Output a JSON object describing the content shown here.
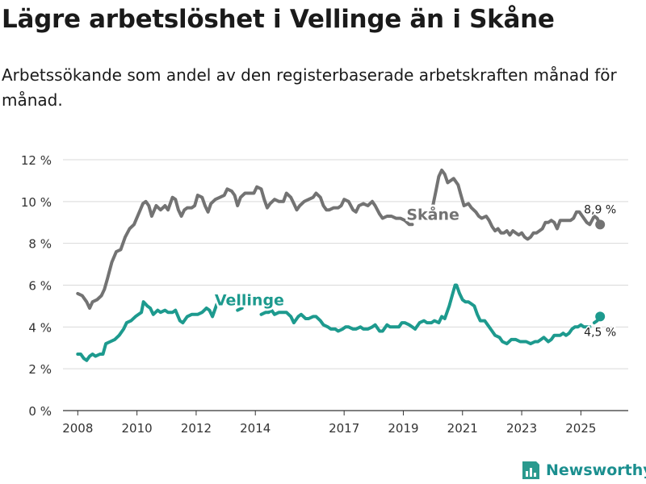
{
  "title": "Lägre arbetslöshet i Vellinge än i Skåne",
  "subtitle": "Arbetssökande som andel av den registerbaserade arbetskraften månad för månad.",
  "brand": "Newsworthy",
  "chart_data": {
    "type": "line",
    "ylim": [
      0,
      12
    ],
    "xlim": [
      2007.5,
      2026.6
    ],
    "yticks": [
      {
        "value": 0,
        "label": "0 %"
      },
      {
        "value": 2,
        "label": "2 %"
      },
      {
        "value": 4,
        "label": "4 %"
      },
      {
        "value": 6,
        "label": "6 %"
      },
      {
        "value": 8,
        "label": "8 %"
      },
      {
        "value": 10,
        "label": "10 %"
      },
      {
        "value": 12,
        "label": "12 %"
      }
    ],
    "xticks": [
      {
        "value": 2008,
        "label": "2008"
      },
      {
        "value": 2010,
        "label": "2010"
      },
      {
        "value": 2012,
        "label": "2012"
      },
      {
        "value": 2014,
        "label": "2014"
      },
      {
        "value": 2017,
        "label": "2017"
      },
      {
        "value": 2019,
        "label": "2019"
      },
      {
        "value": 2021,
        "label": "2021"
      },
      {
        "value": 2023,
        "label": "2023"
      },
      {
        "value": 2025,
        "label": "2025"
      }
    ],
    "grid": true,
    "series": [
      {
        "name": "Skåne",
        "color": "#737373",
        "last_label": "8,9 %",
        "points": [
          [
            2008.0,
            5.6
          ],
          [
            2008.15,
            5.5
          ],
          [
            2008.3,
            5.2
          ],
          [
            2008.4,
            4.9
          ],
          [
            2008.5,
            5.2
          ],
          [
            2008.65,
            5.3
          ],
          [
            2008.8,
            5.5
          ],
          [
            2008.9,
            5.8
          ],
          [
            2009.0,
            6.3
          ],
          [
            2009.15,
            7.1
          ],
          [
            2009.3,
            7.6
          ],
          [
            2009.45,
            7.7
          ],
          [
            2009.6,
            8.3
          ],
          [
            2009.75,
            8.7
          ],
          [
            2009.9,
            8.9
          ],
          [
            2010.05,
            9.4
          ],
          [
            2010.2,
            9.9
          ],
          [
            2010.3,
            10.0
          ],
          [
            2010.4,
            9.8
          ],
          [
            2010.5,
            9.3
          ],
          [
            2010.65,
            9.8
          ],
          [
            2010.8,
            9.6
          ],
          [
            2010.95,
            9.8
          ],
          [
            2011.05,
            9.6
          ],
          [
            2011.2,
            10.2
          ],
          [
            2011.3,
            10.1
          ],
          [
            2011.4,
            9.6
          ],
          [
            2011.5,
            9.3
          ],
          [
            2011.6,
            9.6
          ],
          [
            2011.7,
            9.7
          ],
          [
            2011.85,
            9.7
          ],
          [
            2011.95,
            9.8
          ],
          [
            2012.05,
            10.3
          ],
          [
            2012.2,
            10.2
          ],
          [
            2012.3,
            9.8
          ],
          [
            2012.4,
            9.5
          ],
          [
            2012.5,
            9.9
          ],
          [
            2012.65,
            10.1
          ],
          [
            2012.8,
            10.2
          ],
          [
            2012.95,
            10.3
          ],
          [
            2013.05,
            10.6
          ],
          [
            2013.2,
            10.5
          ],
          [
            2013.3,
            10.3
          ],
          [
            2013.4,
            9.8
          ],
          [
            2013.5,
            10.2
          ],
          [
            2013.65,
            10.4
          ],
          [
            2013.8,
            10.4
          ],
          [
            2013.95,
            10.4
          ],
          [
            2014.05,
            10.7
          ],
          [
            2014.2,
            10.6
          ],
          [
            2014.3,
            10.1
          ],
          [
            2014.4,
            9.7
          ],
          [
            2014.5,
            9.9
          ],
          [
            2014.65,
            10.1
          ],
          [
            2014.8,
            10.0
          ],
          [
            2014.95,
            10.0
          ],
          [
            2015.05,
            10.4
          ],
          [
            2015.2,
            10.2
          ],
          [
            2015.3,
            9.9
          ],
          [
            2015.4,
            9.6
          ],
          [
            2015.5,
            9.8
          ],
          [
            2015.65,
            10.0
          ],
          [
            2015.8,
            10.1
          ],
          [
            2015.95,
            10.2
          ],
          [
            2016.05,
            10.4
          ],
          [
            2016.2,
            10.2
          ],
          [
            2016.3,
            9.8
          ],
          [
            2016.4,
            9.6
          ],
          [
            2016.5,
            9.6
          ],
          [
            2016.65,
            9.7
          ],
          [
            2016.8,
            9.7
          ],
          [
            2016.9,
            9.8
          ],
          [
            2017.0,
            10.1
          ],
          [
            2017.15,
            10.0
          ],
          [
            2017.3,
            9.6
          ],
          [
            2017.4,
            9.5
          ],
          [
            2017.5,
            9.8
          ],
          [
            2017.65,
            9.9
          ],
          [
            2017.8,
            9.8
          ],
          [
            2017.95,
            10.0
          ],
          [
            2018.05,
            9.8
          ],
          [
            2018.2,
            9.4
          ],
          [
            2018.3,
            9.2
          ],
          [
            2018.45,
            9.3
          ],
          [
            2018.6,
            9.3
          ],
          [
            2018.75,
            9.2
          ],
          [
            2018.9,
            9.2
          ],
          [
            2019.05,
            9.1
          ],
          [
            2019.2,
            8.9
          ],
          [
            2019.3,
            8.9
          ]
        ],
        "points_b": [
          [
            2020.0,
            9.8
          ],
          [
            2020.1,
            10.5
          ],
          [
            2020.2,
            11.2
          ],
          [
            2020.3,
            11.5
          ],
          [
            2020.4,
            11.3
          ],
          [
            2020.5,
            10.9
          ],
          [
            2020.6,
            11.0
          ],
          [
            2020.7,
            11.1
          ],
          [
            2020.85,
            10.8
          ],
          [
            2020.95,
            10.3
          ],
          [
            2021.05,
            9.8
          ],
          [
            2021.2,
            9.9
          ],
          [
            2021.3,
            9.7
          ],
          [
            2021.45,
            9.5
          ],
          [
            2021.55,
            9.3
          ],
          [
            2021.65,
            9.2
          ],
          [
            2021.8,
            9.3
          ],
          [
            2021.9,
            9.1
          ],
          [
            2022.0,
            8.8
          ],
          [
            2022.1,
            8.6
          ],
          [
            2022.2,
            8.7
          ],
          [
            2022.3,
            8.5
          ],
          [
            2022.4,
            8.5
          ],
          [
            2022.5,
            8.6
          ],
          [
            2022.6,
            8.4
          ],
          [
            2022.7,
            8.6
          ],
          [
            2022.8,
            8.5
          ],
          [
            2022.9,
            8.4
          ],
          [
            2023.0,
            8.5
          ],
          [
            2023.1,
            8.3
          ],
          [
            2023.2,
            8.2
          ],
          [
            2023.3,
            8.3
          ],
          [
            2023.4,
            8.5
          ],
          [
            2023.5,
            8.5
          ],
          [
            2023.6,
            8.6
          ],
          [
            2023.7,
            8.7
          ],
          [
            2023.8,
            9.0
          ],
          [
            2023.9,
            9.0
          ],
          [
            2024.0,
            9.1
          ],
          [
            2024.1,
            9.0
          ],
          [
            2024.2,
            8.7
          ],
          [
            2024.3,
            9.1
          ],
          [
            2024.4,
            9.1
          ],
          [
            2024.5,
            9.1
          ],
          [
            2024.65,
            9.1
          ],
          [
            2024.75,
            9.2
          ],
          [
            2024.85,
            9.5
          ],
          [
            2024.95,
            9.5
          ],
          [
            2025.05,
            9.3
          ],
          [
            2025.2,
            9.0
          ],
          [
            2025.3,
            8.9
          ],
          [
            2025.45,
            9.3
          ],
          [
            2025.55,
            9.2
          ],
          [
            2025.65,
            8.9
          ]
        ]
      },
      {
        "name": "Vellinge",
        "color": "#1d9a8e",
        "last_label": "4,5 %",
        "points": [
          [
            2008.0,
            2.7
          ],
          [
            2008.1,
            2.7
          ],
          [
            2008.2,
            2.5
          ],
          [
            2008.3,
            2.4
          ],
          [
            2008.4,
            2.6
          ],
          [
            2008.5,
            2.7
          ],
          [
            2008.6,
            2.6
          ],
          [
            2008.75,
            2.7
          ],
          [
            2008.85,
            2.7
          ],
          [
            2008.95,
            3.2
          ],
          [
            2009.1,
            3.3
          ],
          [
            2009.25,
            3.4
          ],
          [
            2009.4,
            3.6
          ],
          [
            2009.55,
            3.9
          ],
          [
            2009.65,
            4.2
          ],
          [
            2009.8,
            4.3
          ],
          [
            2009.95,
            4.5
          ],
          [
            2010.05,
            4.6
          ],
          [
            2010.15,
            4.7
          ],
          [
            2010.22,
            5.2
          ],
          [
            2010.35,
            5.0
          ],
          [
            2010.45,
            4.9
          ],
          [
            2010.55,
            4.6
          ],
          [
            2010.7,
            4.8
          ],
          [
            2010.8,
            4.7
          ],
          [
            2010.95,
            4.8
          ],
          [
            2011.05,
            4.7
          ],
          [
            2011.2,
            4.7
          ],
          [
            2011.3,
            4.8
          ],
          [
            2011.45,
            4.3
          ],
          [
            2011.55,
            4.2
          ],
          [
            2011.7,
            4.5
          ],
          [
            2011.85,
            4.6
          ],
          [
            2011.95,
            4.6
          ],
          [
            2012.05,
            4.6
          ],
          [
            2012.2,
            4.7
          ],
          [
            2012.35,
            4.9
          ],
          [
            2012.45,
            4.8
          ],
          [
            2012.55,
            4.5
          ],
          [
            2012.7,
            5.1
          ],
          [
            2012.85,
            5.3
          ],
          [
            2012.95,
            5.2
          ],
          [
            2013.05,
            5.1
          ]
        ],
        "points_b": [
          [
            2013.4,
            4.8
          ],
          [
            2013.55,
            4.9
          ]
        ],
        "points_c": [
          [
            2014.2,
            4.6
          ],
          [
            2014.35,
            4.7
          ],
          [
            2014.45,
            4.7
          ],
          [
            2014.55,
            4.8
          ],
          [
            2014.65,
            4.6
          ],
          [
            2014.8,
            4.7
          ],
          [
            2014.95,
            4.7
          ],
          [
            2015.05,
            4.7
          ],
          [
            2015.2,
            4.5
          ],
          [
            2015.3,
            4.2
          ],
          [
            2015.45,
            4.5
          ],
          [
            2015.55,
            4.6
          ],
          [
            2015.7,
            4.4
          ],
          [
            2015.8,
            4.4
          ],
          [
            2015.95,
            4.5
          ],
          [
            2016.05,
            4.5
          ],
          [
            2016.2,
            4.3
          ],
          [
            2016.3,
            4.1
          ],
          [
            2016.45,
            4.0
          ],
          [
            2016.55,
            3.9
          ],
          [
            2016.7,
            3.9
          ],
          [
            2016.8,
            3.8
          ],
          [
            2016.95,
            3.9
          ],
          [
            2017.05,
            4.0
          ],
          [
            2017.15,
            4.0
          ],
          [
            2017.3,
            3.9
          ],
          [
            2017.4,
            3.9
          ],
          [
            2017.55,
            4.0
          ],
          [
            2017.65,
            3.9
          ],
          [
            2017.8,
            3.9
          ],
          [
            2017.95,
            4.0
          ],
          [
            2018.05,
            4.1
          ],
          [
            2018.2,
            3.8
          ],
          [
            2018.3,
            3.8
          ],
          [
            2018.45,
            4.1
          ],
          [
            2018.55,
            4.0
          ],
          [
            2018.7,
            4.0
          ],
          [
            2018.85,
            4.0
          ],
          [
            2018.95,
            4.2
          ],
          [
            2019.05,
            4.2
          ],
          [
            2019.2,
            4.1
          ],
          [
            2019.3,
            4.0
          ],
          [
            2019.4,
            3.9
          ],
          [
            2019.55,
            4.2
          ],
          [
            2019.7,
            4.3
          ],
          [
            2019.8,
            4.2
          ],
          [
            2019.95,
            4.2
          ],
          [
            2020.05,
            4.3
          ],
          [
            2020.2,
            4.2
          ],
          [
            2020.3,
            4.5
          ],
          [
            2020.4,
            4.4
          ],
          [
            2020.55,
            5.0
          ],
          [
            2020.65,
            5.5
          ],
          [
            2020.75,
            6.0
          ],
          [
            2020.8,
            6.0
          ],
          [
            2020.9,
            5.6
          ],
          [
            2021.0,
            5.3
          ],
          [
            2021.1,
            5.2
          ],
          [
            2021.2,
            5.2
          ],
          [
            2021.3,
            5.1
          ],
          [
            2021.4,
            5.0
          ],
          [
            2021.5,
            4.6
          ],
          [
            2021.6,
            4.3
          ],
          [
            2021.75,
            4.3
          ],
          [
            2021.85,
            4.1
          ],
          [
            2021.95,
            3.9
          ],
          [
            2022.1,
            3.6
          ],
          [
            2022.25,
            3.5
          ],
          [
            2022.35,
            3.3
          ],
          [
            2022.5,
            3.2
          ],
          [
            2022.65,
            3.4
          ],
          [
            2022.8,
            3.4
          ],
          [
            2022.95,
            3.3
          ],
          [
            2023.05,
            3.3
          ],
          [
            2023.15,
            3.3
          ],
          [
            2023.3,
            3.2
          ],
          [
            2023.45,
            3.3
          ],
          [
            2023.55,
            3.3
          ],
          [
            2023.65,
            3.4
          ],
          [
            2023.75,
            3.5
          ],
          [
            2023.9,
            3.3
          ],
          [
            2024.0,
            3.4
          ],
          [
            2024.1,
            3.6
          ],
          [
            2024.2,
            3.6
          ],
          [
            2024.3,
            3.6
          ],
          [
            2024.4,
            3.7
          ],
          [
            2024.5,
            3.6
          ],
          [
            2024.6,
            3.7
          ],
          [
            2024.7,
            3.9
          ],
          [
            2024.8,
            4.0
          ],
          [
            2024.9,
            4.0
          ],
          [
            2025.0,
            4.1
          ],
          [
            2025.1,
            4.0
          ],
          [
            2025.2,
            4.0
          ],
          [
            2025.3,
            4.0
          ]
        ],
        "points_d": [
          [
            2025.45,
            4.2
          ],
          [
            2025.55,
            4.3
          ],
          [
            2025.65,
            4.5
          ]
        ]
      }
    ],
    "series_labels": [
      {
        "name": "Skåne",
        "x": 2020.0,
        "y": 9.4
      },
      {
        "name": "Vellinge",
        "x": 2013.8,
        "y": 5.3
      }
    ]
  }
}
